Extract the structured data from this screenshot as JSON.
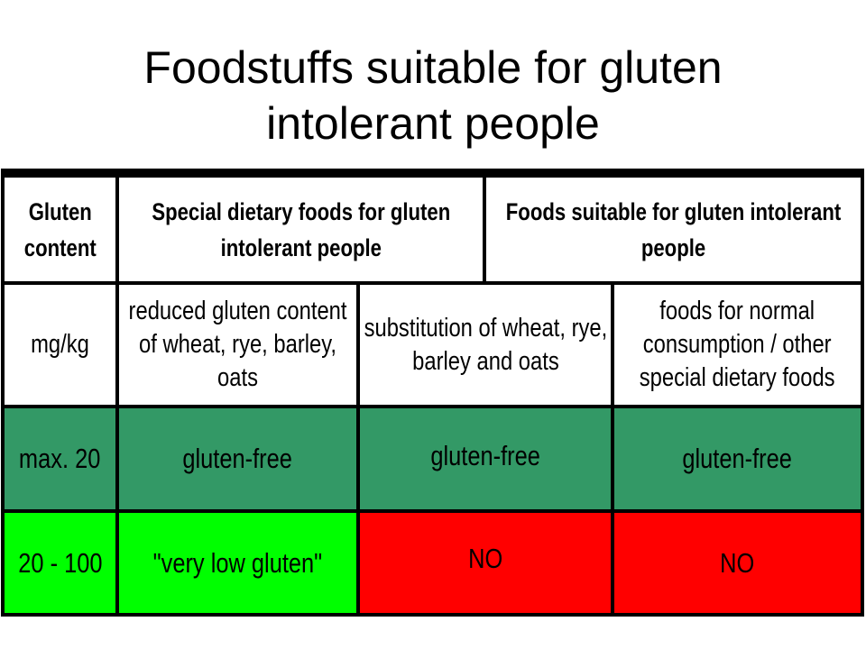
{
  "slide": {
    "title_line1": "Foodstuffs suitable for gluten",
    "title_line2": "intolerant people"
  },
  "table": {
    "header": {
      "gluten_content_line1": "Gluten",
      "gluten_content_line2": "content",
      "special_line1": "Special dietary foods for gluten",
      "special_line2": "intolerant people",
      "suitable_line1": "Foods suitable for gluten intolerant",
      "suitable_line2": "people"
    },
    "subheader": {
      "unit": "mg/kg",
      "reduced_line1": "reduced gluten content",
      "reduced_line2": "of wheat, rye, barley,",
      "reduced_line3": "oats",
      "substitution_line1": "substitution of wheat, rye,",
      "substitution_line2": "barley and oats",
      "normal_line1": "foods for normal",
      "normal_line2": "consumption / other",
      "normal_line3": "special dietary foods"
    },
    "rows": [
      {
        "range": "max. 20",
        "reduced": "gluten-free",
        "substitution": "gluten-free",
        "normal": "gluten-free"
      },
      {
        "range": "20 - 100",
        "reduced": "\"very low gluten\"",
        "substitution": "NO",
        "normal": "NO"
      }
    ]
  },
  "colors": {
    "row_gluten_free": "#339966",
    "very_low_gluten": "#00ff00",
    "not_allowed": "#ff0000"
  }
}
